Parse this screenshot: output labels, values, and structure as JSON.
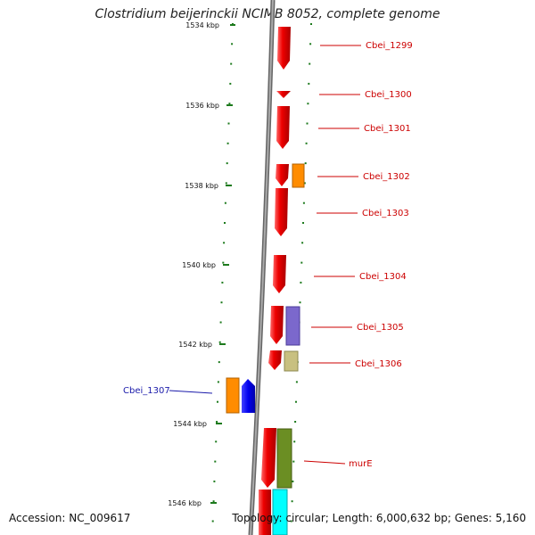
{
  "title": "Clostridium beijerinckii NCIMB 8052, complete genome",
  "footer": {
    "accession": "Accession: NC_009617",
    "topology": "Topology: circular; Length: 6,000,632 bp; Genes: 5,160"
  },
  "colors": {
    "tick": "#1d7a1d",
    "backbone": "#888888",
    "forward_label": "#cc0000",
    "reverse_label": "#1a1aaa"
  },
  "ticks": [
    {
      "label": "1534 kbp"
    },
    {
      "label": "1536 kbp"
    },
    {
      "label": "1538 kbp"
    },
    {
      "label": "1540 kbp"
    },
    {
      "label": "1542 kbp"
    },
    {
      "label": "1544 kbp"
    },
    {
      "label": "1546 kbp"
    }
  ],
  "genes": [
    {
      "name": "Cbei_1299",
      "strand": "+",
      "color": "#ee0000"
    },
    {
      "name": "Cbei_1300",
      "strand": "+",
      "color": "#ee0000"
    },
    {
      "name": "Cbei_1301",
      "strand": "+",
      "color": "#ee0000"
    },
    {
      "name": "Cbei_1302",
      "strand": "+",
      "color": "#ee0000"
    },
    {
      "name": "Cbei_1303",
      "strand": "+",
      "color": "#ee0000"
    },
    {
      "name": "Cbei_1304",
      "strand": "+",
      "color": "#ee0000"
    },
    {
      "name": "Cbei_1305",
      "strand": "+",
      "color": "#ee0000"
    },
    {
      "name": "Cbei_1306",
      "strand": "+",
      "color": "#ee0000"
    },
    {
      "name": "Cbei_1307",
      "strand": "-",
      "color": "#0000ee"
    },
    {
      "name": "murE",
      "strand": "+",
      "color": "#ee0000"
    }
  ],
  "feature_colors": [
    "#ff8c00",
    "#7b68cc",
    "#c8c080",
    "#6b8e23",
    "#00ffff"
  ]
}
